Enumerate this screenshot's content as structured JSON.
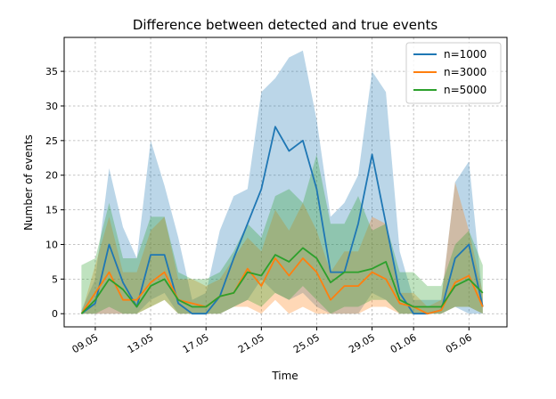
{
  "chart_data": {
    "type": "line",
    "title": "Difference between detected and true events",
    "xlabel": "Time",
    "ylabel": "Number of events",
    "grid": true,
    "legend_position": "top-right",
    "x_ticks": [
      {
        "day": 4,
        "label": "09.05"
      },
      {
        "day": 8,
        "label": "13.05"
      },
      {
        "day": 12,
        "label": "17.05"
      },
      {
        "day": 16,
        "label": "21.05"
      },
      {
        "day": 20,
        "label": "25.05"
      },
      {
        "day": 24,
        "label": "29.05"
      },
      {
        "day": 27,
        "label": "01.06"
      },
      {
        "day": 31,
        "label": "05.06"
      }
    ],
    "y_ticks": [
      0,
      5,
      10,
      15,
      20,
      25,
      30,
      35
    ],
    "ylim": [
      -1.9,
      39.9
    ],
    "xlim": [
      1.75,
      33.75
    ],
    "x_dates": [
      "06.05",
      "07.05",
      "08.05",
      "09.05",
      "10.05",
      "11.05",
      "12.05",
      "13.05",
      "14.05",
      "15.05",
      "16.05",
      "17.05",
      "18.05",
      "19.05",
      "20.05",
      "21.05",
      "22.05",
      "23.05",
      "24.05",
      "25.05",
      "26.05",
      "27.05",
      "28.05",
      "29.05",
      "30.05",
      "31.05",
      "01.06",
      "02.06",
      "03.06",
      "04.06",
      "05.06",
      "06.06"
    ],
    "x": [
      3,
      4,
      5,
      6,
      7,
      8,
      9,
      10,
      11,
      12,
      13,
      14,
      15,
      16,
      17,
      18,
      19,
      20,
      21,
      22,
      23,
      24,
      25,
      26,
      27,
      28,
      29,
      30,
      31,
      32
    ],
    "series": [
      {
        "name": "n=1000",
        "color": "#1f77b4",
        "values": [
          0,
          1.5,
          10,
          4.5,
          1,
          8.5,
          8.5,
          1.5,
          0,
          0,
          2.5,
          8,
          13,
          18,
          27,
          23.5,
          25,
          18,
          6,
          6,
          13,
          23,
          13,
          3,
          0,
          0,
          0.5,
          8,
          10,
          1
        ],
        "upper": [
          0.5,
          5,
          21,
          12.5,
          8,
          25,
          18.5,
          11,
          2,
          3,
          12,
          17,
          18,
          32,
          34,
          37,
          38,
          28,
          14,
          16,
          20,
          35,
          32,
          9,
          2,
          2,
          2,
          19,
          22,
          2
        ],
        "lower": [
          0,
          0,
          0,
          0,
          0,
          2,
          3,
          0,
          0,
          0,
          0,
          1,
          2,
          5,
          3,
          2,
          3,
          1,
          0,
          0,
          0,
          3,
          2,
          0,
          0,
          0,
          0,
          1,
          0,
          0
        ]
      },
      {
        "name": "n=3000",
        "color": "#ff7f0e",
        "values": [
          0,
          3,
          6,
          2,
          2,
          4.5,
          6,
          2,
          1.5,
          1,
          2.5,
          3,
          6.5,
          4,
          8,
          5.5,
          8,
          6,
          2,
          4,
          4,
          6,
          5,
          1.5,
          1,
          0,
          0.5,
          4.5,
          5.5,
          1
        ],
        "upper": [
          0,
          7,
          14,
          6,
          6,
          12,
          14,
          5,
          5,
          4,
          5,
          8,
          11,
          9,
          15,
          12,
          16,
          12,
          6,
          9,
          9,
          14,
          13,
          3,
          3,
          1,
          2,
          19,
          12,
          3
        ],
        "lower": [
          0,
          0,
          0,
          0,
          0,
          1,
          2,
          0,
          0,
          0,
          0,
          1,
          1,
          0,
          2,
          0,
          1,
          0,
          0,
          0,
          0,
          1,
          1,
          0,
          0,
          0,
          0,
          1,
          1,
          0
        ]
      },
      {
        "name": "n=5000",
        "color": "#2ca02c",
        "values": [
          0,
          2,
          5,
          3.5,
          1,
          4,
          5,
          2,
          1,
          1,
          2.5,
          3,
          6,
          5.5,
          8.5,
          7.5,
          9.5,
          8,
          4.5,
          6,
          6,
          6.5,
          7.5,
          2,
          1,
          1,
          1,
          4,
          5,
          3
        ],
        "upper": [
          7,
          8,
          16,
          8,
          8,
          14,
          14,
          6,
          5,
          5,
          6,
          9,
          13,
          11,
          17,
          18,
          16,
          23,
          13,
          13,
          17,
          12,
          13,
          6,
          6,
          4,
          4,
          10,
          12,
          7
        ],
        "lower": [
          0,
          0,
          1,
          0,
          0,
          1,
          2,
          0,
          0,
          0,
          0,
          1,
          2,
          1,
          3,
          2,
          4,
          2,
          0,
          1,
          1,
          2,
          2,
          0,
          0,
          0,
          0,
          1,
          1,
          0
        ]
      }
    ]
  }
}
